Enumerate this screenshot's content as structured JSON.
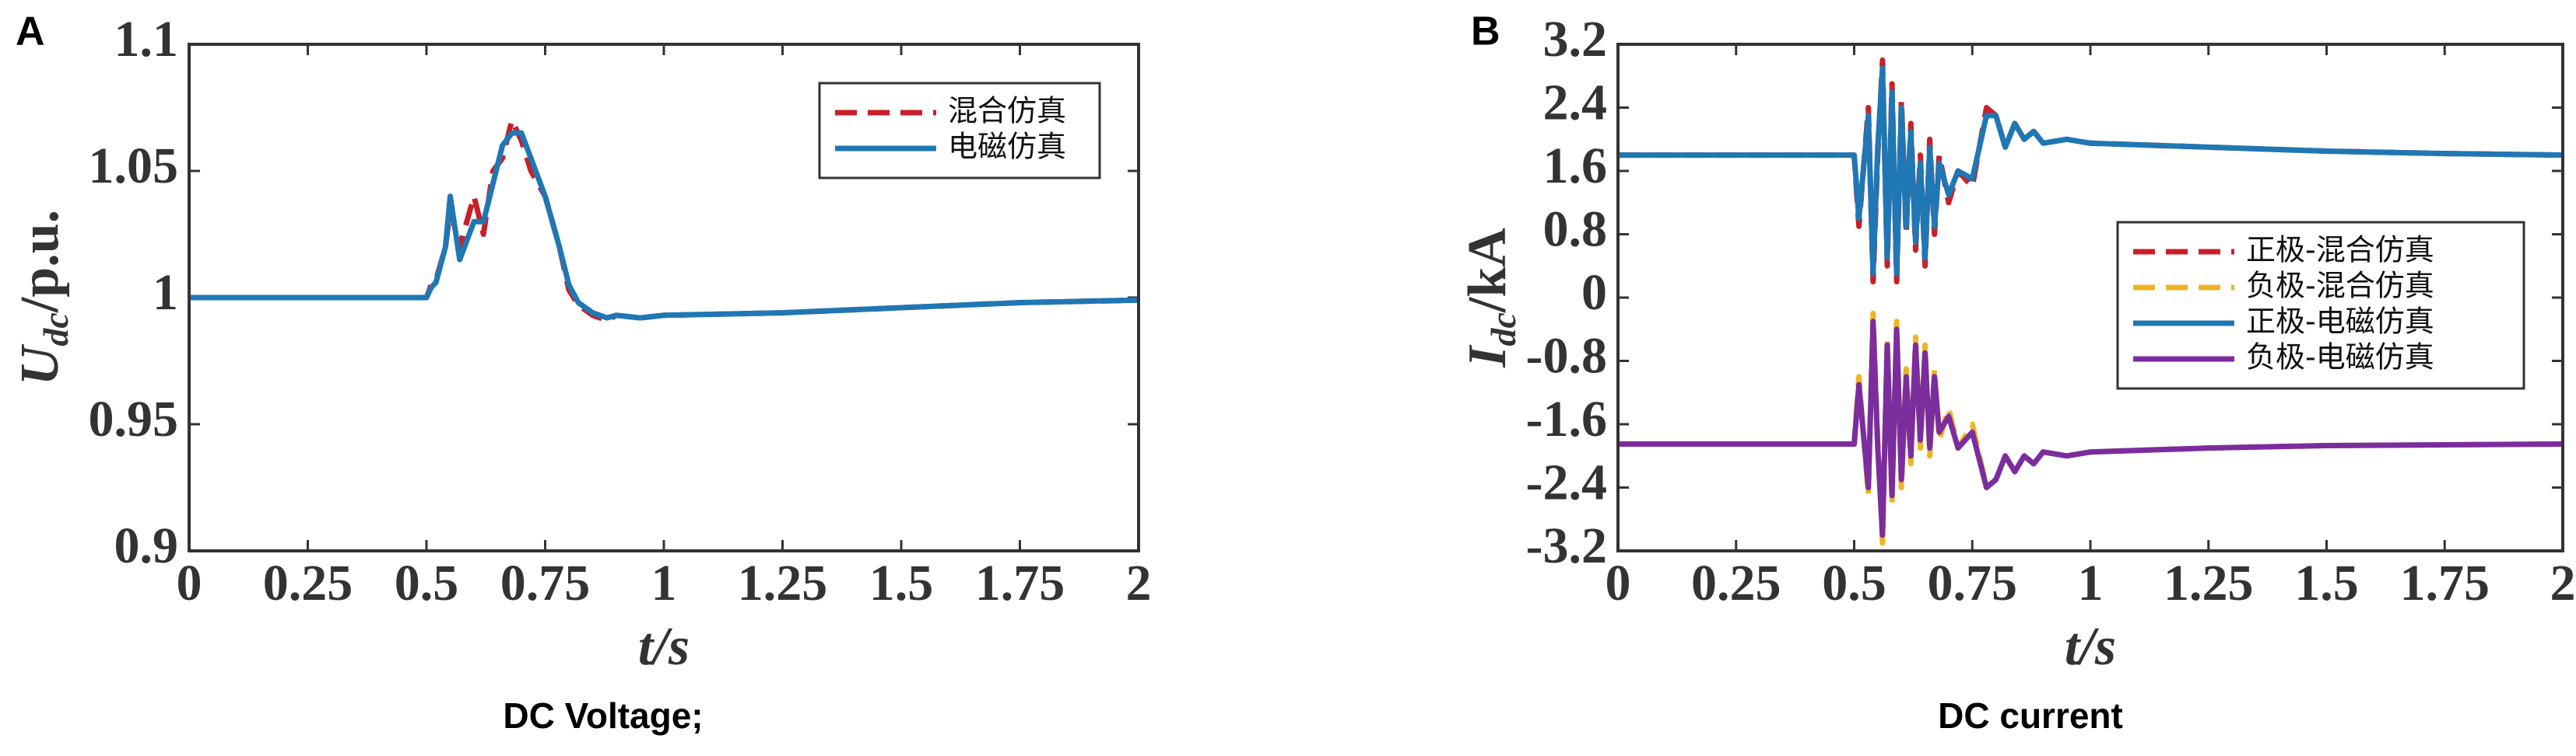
{
  "chart_data": [
    {
      "type": "line",
      "panel": "A",
      "caption": "DC Voltage;",
      "x_label": "t/s",
      "y_label": [
        "U",
        "dc",
        "/p.u."
      ],
      "xlim": [
        0,
        2
      ],
      "ylim": [
        0.9,
        1.1
      ],
      "xticks": [
        0,
        0.25,
        0.5,
        0.75,
        1,
        1.25,
        1.5,
        1.75,
        2
      ],
      "yticks": [
        0.9,
        0.95,
        1,
        1.05,
        1.1
      ],
      "legend": "upper right",
      "x": [
        0,
        0.5,
        0.51,
        0.52,
        0.54,
        0.55,
        0.57,
        0.6,
        0.62,
        0.64,
        0.66,
        0.68,
        0.7,
        0.72,
        0.75,
        0.78,
        0.8,
        0.82,
        0.85,
        0.88,
        0.9,
        0.95,
        1,
        1.25,
        1.5,
        1.75,
        2
      ],
      "series": [
        {
          "name": "混合仿真",
          "color": "#c8202a",
          "style": "dashed",
          "values": [
            1,
            1,
            1.005,
            1.007,
            1.02,
            1.035,
            1.02,
            1.04,
            1.025,
            1.05,
            1.055,
            1.07,
            1.062,
            1.05,
            1.04,
            1.02,
            1.003,
            0.997,
            0.993,
            0.991,
            0.993,
            0.992,
            0.993,
            0.994,
            0.996,
            0.998,
            0.999
          ]
        },
        {
          "name": "电磁仿真",
          "color": "#1f77b4",
          "style": "solid",
          "values": [
            1,
            1,
            1.004,
            1.006,
            1.02,
            1.04,
            1.015,
            1.03,
            1.03,
            1.045,
            1.06,
            1.065,
            1.065,
            1.055,
            1.04,
            1.02,
            1.005,
            0.998,
            0.994,
            0.992,
            0.993,
            0.992,
            0.993,
            0.994,
            0.996,
            0.998,
            0.999
          ]
        }
      ]
    },
    {
      "type": "line",
      "panel": "B",
      "caption": "DC  current",
      "x_label": "t/s",
      "y_label": [
        "I",
        "dc",
        "/kA"
      ],
      "xlim": [
        0,
        2
      ],
      "ylim": [
        -3.2,
        3.2
      ],
      "xticks": [
        0,
        0.25,
        0.5,
        0.75,
        1,
        1.25,
        1.5,
        1.75,
        2
      ],
      "yticks": [
        -3.2,
        -2.4,
        -1.6,
        -0.8,
        0,
        0.8,
        1.6,
        2.4,
        3.2
      ],
      "legend": "center right",
      "x": [
        0,
        0.5,
        0.51,
        0.53,
        0.54,
        0.55,
        0.56,
        0.57,
        0.58,
        0.59,
        0.6,
        0.61,
        0.62,
        0.63,
        0.64,
        0.65,
        0.66,
        0.67,
        0.68,
        0.7,
        0.72,
        0.75,
        0.78,
        0.8,
        0.82,
        0.84,
        0.86,
        0.88,
        0.9,
        0.95,
        1,
        1.25,
        1.5,
        1.75,
        2
      ],
      "series": [
        {
          "name": "正极-混合仿真",
          "color": "#c8202a",
          "style": "dashed",
          "values": [
            1.8,
            1.8,
            0.9,
            2.4,
            0.2,
            1.8,
            3.0,
            0.4,
            2.7,
            0.2,
            2.5,
            0.8,
            2.2,
            0.6,
            1.8,
            0.4,
            2.0,
            0.8,
            1.8,
            1.2,
            1.6,
            1.4,
            2.4,
            2.3,
            1.9,
            2.2,
            2.0,
            2.1,
            1.95,
            2.0,
            1.95,
            1.9,
            1.85,
            1.82,
            1.8
          ]
        },
        {
          "name": "负极-混合仿真",
          "color": "#f0b323",
          "style": "dashed",
          "values": [
            -1.85,
            -1.85,
            -1.0,
            -2.5,
            -0.2,
            -1.8,
            -3.1,
            -0.5,
            -2.6,
            -0.3,
            -2.4,
            -0.9,
            -2.1,
            -0.5,
            -1.9,
            -0.6,
            -2.0,
            -0.9,
            -1.8,
            -1.4,
            -1.9,
            -1.6,
            -2.4,
            -2.3,
            -2.0,
            -2.2,
            -2.0,
            -2.1,
            -1.95,
            -2.0,
            -1.95,
            -1.9,
            -1.87,
            -1.86,
            -1.85
          ]
        },
        {
          "name": "正极-电磁仿真",
          "color": "#1f77b4",
          "style": "solid",
          "values": [
            1.8,
            1.8,
            1.0,
            2.3,
            0.3,
            1.9,
            2.9,
            0.5,
            2.6,
            0.3,
            2.4,
            0.9,
            2.1,
            0.7,
            1.7,
            0.5,
            1.9,
            0.9,
            1.7,
            1.3,
            1.6,
            1.5,
            2.3,
            2.3,
            1.9,
            2.2,
            2.0,
            2.1,
            1.95,
            2.0,
            1.95,
            1.9,
            1.85,
            1.82,
            1.8
          ]
        },
        {
          "name": "负极-电磁仿真",
          "color": "#7b2d9e",
          "style": "solid",
          "values": [
            -1.85,
            -1.85,
            -1.1,
            -2.4,
            -0.3,
            -1.9,
            -3.0,
            -0.6,
            -2.5,
            -0.4,
            -2.3,
            -1.0,
            -2.0,
            -0.6,
            -1.8,
            -0.7,
            -1.9,
            -1.0,
            -1.7,
            -1.5,
            -1.9,
            -1.7,
            -2.4,
            -2.3,
            -2.0,
            -2.2,
            -2.0,
            -2.1,
            -1.95,
            -2.0,
            -1.95,
            -1.9,
            -1.87,
            -1.86,
            -1.85
          ]
        }
      ]
    }
  ]
}
